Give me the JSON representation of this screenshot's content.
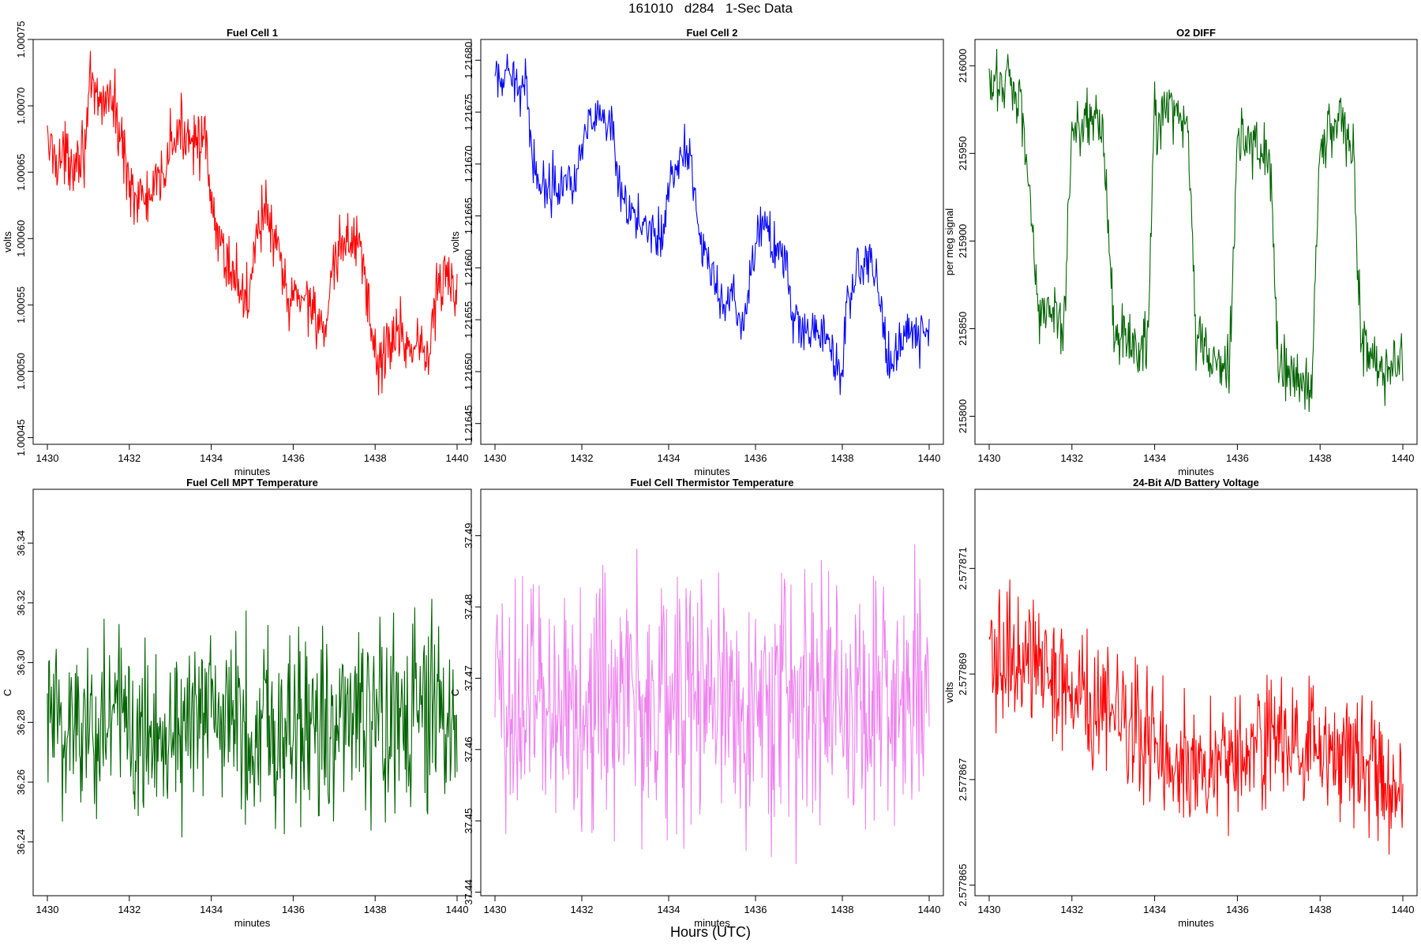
{
  "figure": {
    "title": "161010   d284   1-Sec Data",
    "xlabel": "Hours (UTC)"
  },
  "chart_data": [
    {
      "type": "line",
      "title": "Fuel Cell 1",
      "xlabel": "minutes",
      "ylabel": "volts",
      "color": "#ff0000",
      "xlim": [
        1430,
        1440
      ],
      "ylim": [
        1.000445,
        1.00075
      ],
      "xticks": [
        "1430",
        "1432",
        "1434",
        "1436",
        "1438",
        "1440"
      ],
      "yticks": [
        "1.00045",
        "1.00050",
        "1.00055",
        "1.00060",
        "1.00065",
        "1.00070",
        "1.00075"
      ],
      "noise": 1.2e-05,
      "x": [
        1430,
        1430.3,
        1430.6,
        1430.9,
        1431.05,
        1431.25,
        1431.5,
        1431.7,
        1431.95,
        1432.2,
        1432.5,
        1432.75,
        1433.0,
        1433.3,
        1433.6,
        1433.85,
        1434.05,
        1434.3,
        1434.6,
        1434.9,
        1435.1,
        1435.35,
        1435.6,
        1435.9,
        1436.2,
        1436.45,
        1436.65,
        1436.8,
        1437.0,
        1437.3,
        1437.6,
        1437.85,
        1438.05,
        1438.3,
        1438.6,
        1438.85,
        1439.1,
        1439.3,
        1439.5,
        1439.75,
        1439.95
      ],
      "y": [
        1.00067,
        1.00066,
        1.00066,
        1.00067,
        1.00071,
        1.0007,
        1.00071,
        1.00069,
        1.00065,
        1.00063,
        1.00063,
        1.00064,
        1.00067,
        1.00068,
        1.00068,
        1.00067,
        1.00061,
        1.00059,
        1.00057,
        1.00055,
        1.00061,
        1.00062,
        1.00059,
        1.00055,
        1.00056,
        1.00055,
        1.00054,
        1.00052,
        1.00058,
        1.0006,
        1.0006,
        1.00055,
        1.0005,
        1.00052,
        1.00053,
        1.00052,
        1.00052,
        1.00051,
        1.00056,
        1.00057,
        1.00056
      ]
    },
    {
      "type": "line",
      "title": "Fuel Cell 2",
      "xlabel": "minutes",
      "ylabel": "volts",
      "color": "#0000ff",
      "xlim": [
        1430,
        1440
      ],
      "ylim": [
        1.21643,
        1.21682
      ],
      "xticks": [
        "1430",
        "1432",
        "1434",
        "1436",
        "1438",
        "1440"
      ],
      "yticks": [
        "1.21645",
        "1.21650",
        "1.21655",
        "1.21660",
        "1.21665",
        "1.21670",
        "1.21675",
        "1.21680"
      ],
      "noise": 1.2e-05,
      "x": [
        1430,
        1430.5,
        1430.75,
        1430.85,
        1431.05,
        1431.3,
        1431.6,
        1431.85,
        1432.05,
        1432.5,
        1432.7,
        1432.9,
        1433.2,
        1433.6,
        1433.85,
        1434.05,
        1434.4,
        1434.55,
        1434.75,
        1434.9,
        1435.2,
        1435.5,
        1435.7,
        1435.9,
        1436.1,
        1436.4,
        1436.7,
        1436.85,
        1437.1,
        1437.4,
        1437.75,
        1437.95,
        1438.1,
        1438.3,
        1438.6,
        1438.8,
        1439.0,
        1439.2,
        1439.4,
        1439.6,
        1440
      ],
      "y": [
        1.21678,
        1.21678,
        1.21677,
        1.21671,
        1.21668,
        1.21668,
        1.21669,
        1.21668,
        1.21674,
        1.21674,
        1.21673,
        1.21666,
        1.21665,
        1.21664,
        1.21663,
        1.21669,
        1.21671,
        1.2167,
        1.21662,
        1.21661,
        1.21656,
        1.21657,
        1.21653,
        1.2166,
        1.21664,
        1.21663,
        1.2166,
        1.21655,
        1.21654,
        1.21654,
        1.21653,
        1.21648,
        1.21656,
        1.2166,
        1.21661,
        1.21659,
        1.21652,
        1.21651,
        1.21654,
        1.21654,
        1.21653
      ]
    },
    {
      "type": "line",
      "title": "O2 DIFF",
      "xlabel": "minutes",
      "ylabel": "per meg signal",
      "color": "#006400",
      "xlim": [
        1430,
        1440
      ],
      "ylim": [
        215784,
        216015
      ],
      "xticks": [
        "1430",
        "1432",
        "1434",
        "1436",
        "1438",
        "1440"
      ],
      "yticks": [
        "215800",
        "215850",
        "215900",
        "215950",
        "216000"
      ],
      "noise": 9,
      "x": [
        1430,
        1430.5,
        1430.8,
        1431.0,
        1431.2,
        1431.6,
        1431.8,
        1432.0,
        1432.5,
        1432.75,
        1433.0,
        1433.5,
        1433.8,
        1434.0,
        1434.5,
        1434.8,
        1435.0,
        1435.5,
        1435.8,
        1436.0,
        1436.5,
        1436.8,
        1437.0,
        1437.5,
        1437.8,
        1438.0,
        1438.5,
        1438.8,
        1439.0,
        1439.5,
        1439.8,
        1440
      ],
      "y": [
        215985,
        215995,
        215975,
        215920,
        215862,
        215855,
        215850,
        215965,
        215972,
        215965,
        215850,
        215838,
        215835,
        215968,
        215975,
        215965,
        215845,
        215830,
        215825,
        215960,
        215955,
        215940,
        215830,
        215818,
        215815,
        215955,
        215970,
        215950,
        215840,
        215825,
        215830,
        215835
      ]
    },
    {
      "type": "line",
      "title": "Fuel Cell MPT Temperature",
      "xlabel": "minutes",
      "ylabel": "C",
      "color": "#006400",
      "xlim": [
        1430,
        1440
      ],
      "ylim": [
        36.222,
        36.358
      ],
      "xticks": [
        "1430",
        "1432",
        "1434",
        "1436",
        "1438",
        "1440"
      ],
      "yticks": [
        "36.24",
        "36.26",
        "36.28",
        "36.30",
        "36.32",
        "36.34"
      ],
      "noise": 0.016,
      "x": [
        1430,
        1435,
        1440
      ],
      "y": [
        36.28,
        36.28,
        36.28
      ]
    },
    {
      "type": "line",
      "title": "Fuel Cell Thermistor Temperature",
      "xlabel": "minutes",
      "ylabel": "C",
      "color": "#ee82ee",
      "xlim": [
        1430,
        1440
      ],
      "ylim": [
        37.4395,
        37.4965
      ],
      "xticks": [
        "1430",
        "1432",
        "1434",
        "1436",
        "1438",
        "1440"
      ],
      "yticks": [
        "37.44",
        "37.45",
        "37.46",
        "37.47",
        "37.48",
        "37.49"
      ],
      "noise": 0.009,
      "x": [
        1430,
        1435,
        1440
      ],
      "y": [
        37.467,
        37.467,
        37.467
      ]
    },
    {
      "type": "line",
      "title": "24-Bit A/D Battery Voltage",
      "xlabel": "minutes",
      "ylabel": "volts",
      "color": "#ff0000",
      "xlim": [
        1430,
        1440
      ],
      "ylim": [
        2.5778648,
        2.5778725
      ],
      "xticks": [
        "1430",
        "1432",
        "1434",
        "1436",
        "1438",
        "1440"
      ],
      "yticks": [
        "2.577865",
        "2.577867",
        "2.577869",
        "2.577871"
      ],
      "noise": 6e-07,
      "x": [
        1430,
        1431.0,
        1432.0,
        1433.0,
        1434.0,
        1435.0,
        1436.0,
        1437.0,
        1438.0,
        1439.0,
        1440
      ],
      "y": [
        2.5778692,
        2.5778694,
        2.5778686,
        2.5778682,
        2.5778678,
        2.5778672,
        2.5778674,
        2.5778678,
        2.5778674,
        2.5778673,
        2.5778668
      ]
    }
  ]
}
